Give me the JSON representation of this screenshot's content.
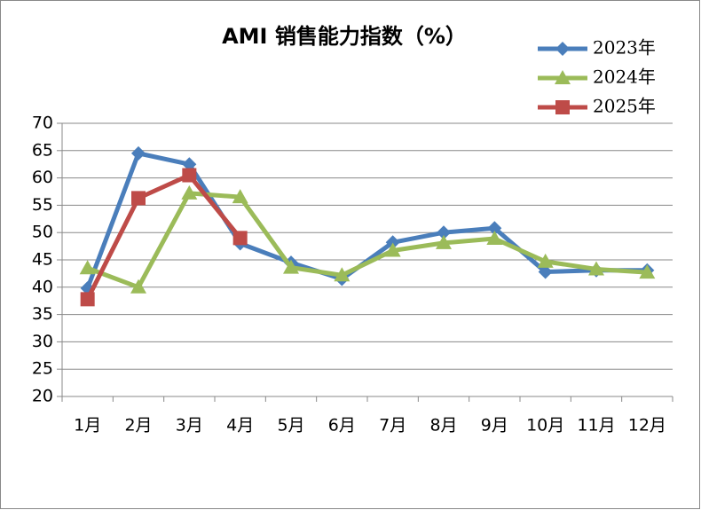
{
  "chart_data": {
    "type": "line",
    "title": "AMI 销售能力指数（%）",
    "categories": [
      "1月",
      "2月",
      "3月",
      "4月",
      "5月",
      "6月",
      "7月",
      "8月",
      "9月",
      "10月",
      "11月",
      "12月"
    ],
    "series": [
      {
        "name": "2023年",
        "color": "#4a7ebb",
        "marker": "diamond",
        "values": [
          39.8,
          64.5,
          62.5,
          48,
          44.5,
          41.5,
          48.2,
          50,
          50.8,
          42.8,
          43.1,
          43.1
        ]
      },
      {
        "name": "2024年",
        "color": "#9bbb59",
        "marker": "triangle",
        "values": [
          43.5,
          40,
          57.2,
          56.5,
          43.6,
          42.2,
          46.7,
          48.1,
          48.9,
          44.7,
          43.3,
          42.7
        ]
      },
      {
        "name": "2025年",
        "color": "#be4b48",
        "marker": "square",
        "values": [
          37.8,
          56.3,
          60.5,
          49,
          null,
          null,
          null,
          null,
          null,
          null,
          null,
          null
        ]
      }
    ],
    "ylim": [
      20,
      70
    ],
    "yticks": [
      20,
      25,
      30,
      35,
      40,
      45,
      50,
      55,
      60,
      65,
      70
    ],
    "grid": true,
    "legend": "top-right"
  }
}
